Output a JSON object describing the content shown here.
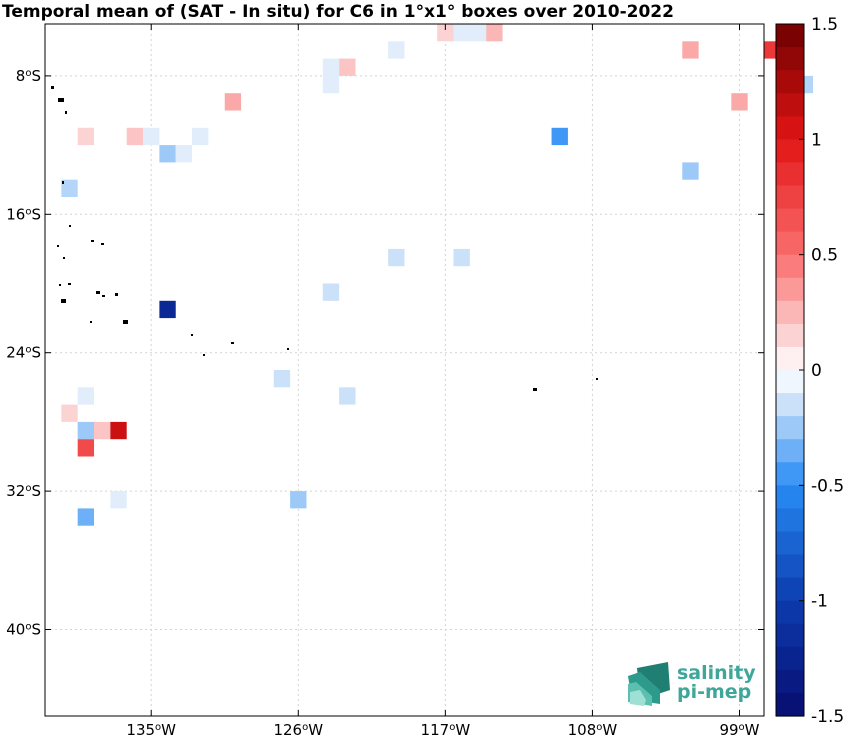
{
  "chart_data": {
    "type": "heatmap",
    "title": "Temporal mean of (SAT - In situ) for C6 in 1°x1° boxes over 2010-2022",
    "x_range_deg": [
      -141.5,
      -97.5
    ],
    "y_range_deg": [
      -45,
      -5
    ],
    "x_ticks": [
      {
        "value": -135,
        "label": "135",
        "unit": "o",
        "hemi": "W"
      },
      {
        "value": -126,
        "label": "126",
        "unit": "o",
        "hemi": "W"
      },
      {
        "value": -117,
        "label": "117",
        "unit": "o",
        "hemi": "W"
      },
      {
        "value": -108,
        "label": "108",
        "unit": "o",
        "hemi": "W"
      },
      {
        "value": -99,
        "label": "99",
        "unit": "o",
        "hemi": "W"
      }
    ],
    "y_ticks": [
      {
        "value": -8,
        "label": "8",
        "unit": "o",
        "hemi": "S"
      },
      {
        "value": -16,
        "label": "16",
        "unit": "o",
        "hemi": "S"
      },
      {
        "value": -24,
        "label": "24",
        "unit": "o",
        "hemi": "S"
      },
      {
        "value": -32,
        "label": "32",
        "unit": "o",
        "hemi": "S"
      },
      {
        "value": -40,
        "label": "40",
        "unit": "o",
        "hemi": "S"
      }
    ],
    "grid": true,
    "colorbar": {
      "range": [
        -1.5,
        1.5
      ],
      "ticks": [
        {
          "value": 1.5,
          "label": "1.5"
        },
        {
          "value": 1,
          "label": "1"
        },
        {
          "value": 0.5,
          "label": "0.5"
        },
        {
          "value": 0,
          "label": "0"
        },
        {
          "value": -0.5,
          "label": "-0.5"
        },
        {
          "value": -1,
          "label": "-1"
        },
        {
          "value": -1.5,
          "label": "-1.5"
        }
      ]
    },
    "cells": [
      {
        "lon": -117,
        "lat": -5.5,
        "value": 0.15
      },
      {
        "lon": -116,
        "lat": -5.5,
        "value": -0.1
      },
      {
        "lon": -115,
        "lat": -5.5,
        "value": -0.1
      },
      {
        "lon": -114,
        "lat": -5.5,
        "value": 0.25
      },
      {
        "lon": -120,
        "lat": -6.5,
        "value": -0.1
      },
      {
        "lon": -102,
        "lat": -6.5,
        "value": 0.3
      },
      {
        "lon": -97,
        "lat": -6.5,
        "value": 0.8
      },
      {
        "lon": -124,
        "lat": -7.5,
        "value": -0.1
      },
      {
        "lon": -123,
        "lat": -7.5,
        "value": 0.2
      },
      {
        "lon": -124,
        "lat": -8.5,
        "value": -0.1
      },
      {
        "lon": -95,
        "lat": -8.5,
        "value": -0.2
      },
      {
        "lon": -130,
        "lat": -9.5,
        "value": 0.3
      },
      {
        "lon": -99,
        "lat": -9.5,
        "value": 0.3
      },
      {
        "lon": -139,
        "lat": -11.5,
        "value": 0.15
      },
      {
        "lon": -136,
        "lat": -11.5,
        "value": 0.2
      },
      {
        "lon": -135,
        "lat": -11.5,
        "value": -0.1
      },
      {
        "lon": -132,
        "lat": -11.5,
        "value": -0.1
      },
      {
        "lon": -110,
        "lat": -11.5,
        "value": -0.45
      },
      {
        "lon": -134,
        "lat": -12.5,
        "value": -0.25
      },
      {
        "lon": -133,
        "lat": -12.5,
        "value": -0.1
      },
      {
        "lon": -102,
        "lat": -13.5,
        "value": -0.25
      },
      {
        "lon": -140,
        "lat": -14.5,
        "value": -0.2
      },
      {
        "lon": -120,
        "lat": -18.5,
        "value": -0.15
      },
      {
        "lon": -116,
        "lat": -18.5,
        "value": -0.15
      },
      {
        "lon": -124,
        "lat": -20.5,
        "value": -0.15
      },
      {
        "lon": -134,
        "lat": -21.5,
        "value": -1.2
      },
      {
        "lon": -127,
        "lat": -25.5,
        "value": -0.15
      },
      {
        "lon": -139,
        "lat": -26.5,
        "value": -0.1
      },
      {
        "lon": -123,
        "lat": -26.5,
        "value": -0.15
      },
      {
        "lon": -140,
        "lat": -27.5,
        "value": 0.15
      },
      {
        "lon": -139,
        "lat": -28.5,
        "value": -0.25
      },
      {
        "lon": -138,
        "lat": -28.5,
        "value": 0.2
      },
      {
        "lon": -137,
        "lat": -28.5,
        "value": 1.1
      },
      {
        "lon": -139,
        "lat": -29.5,
        "value": 0.7
      },
      {
        "lon": -137,
        "lat": -32.5,
        "value": -0.1
      },
      {
        "lon": -126,
        "lat": -32.5,
        "value": -0.25
      },
      {
        "lon": -139,
        "lat": -33.5,
        "value": -0.35
      }
    ]
  },
  "logo": {
    "line1": "salinity",
    "line2": "pi-mep"
  }
}
